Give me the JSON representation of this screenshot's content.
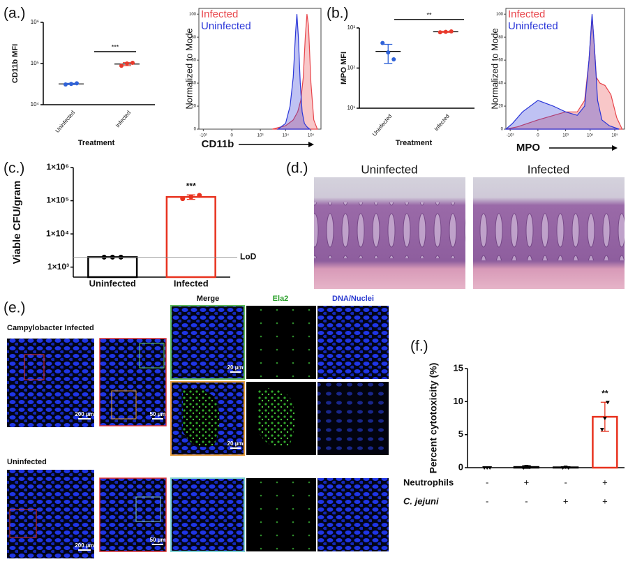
{
  "chart_data": [
    {
      "type": "dot",
      "label": "(a.)",
      "ylabel": "CD11b MFI",
      "xlabel": "Treatment",
      "categories": [
        "Uninfected",
        "Infected"
      ],
      "yscale": "log",
      "ylim": [
        10000,
        1000000
      ],
      "yticks": [
        {
          "value": 10000,
          "label": "10⁴"
        },
        {
          "value": 100000,
          "label": "10⁵"
        },
        {
          "value": 1000000,
          "label": "10⁶"
        }
      ],
      "colors": [
        "#2f62d8",
        "#e8392c"
      ],
      "points": [
        [
          31000,
          32000,
          33000
        ],
        [
          88000,
          100000,
          104000
        ]
      ],
      "mean": [
        32000,
        97000
      ],
      "error": [
        1000,
        8000
      ],
      "annotation": "***"
    },
    {
      "type": "area",
      "ylabel": "Normalized to Mode",
      "xlabel": "CD11b",
      "xscale": "biex",
      "xlim": [
        -1500,
        250000
      ],
      "xticks": [
        {
          "value": -1000,
          "label": "-10³"
        },
        0,
        {
          "value": 1000,
          "label": "10³"
        },
        {
          "value": 10000,
          "label": "10⁴"
        },
        {
          "value": 100000,
          "label": "10⁵"
        }
      ],
      "ylim": [
        0,
        105
      ],
      "yticks": [
        0,
        20,
        40,
        60,
        80,
        100
      ],
      "legend": "top-left",
      "series": [
        {
          "name": "Infected",
          "color": "#e8444a",
          "x": [
            3000,
            10000,
            20000,
            30000,
            40000,
            50000,
            60000,
            70000,
            80000,
            100000,
            130000,
            180000
          ],
          "values": [
            0,
            3,
            8,
            15,
            25,
            45,
            80,
            100,
            90,
            40,
            8,
            0
          ]
        },
        {
          "name": "Uninfected",
          "color": "#2a36d8",
          "x": [
            5000,
            10000,
            15000,
            20000,
            25000,
            28000,
            32000,
            38000,
            45000,
            55000,
            70000,
            90000
          ],
          "values": [
            0,
            5,
            20,
            45,
            85,
            100,
            80,
            40,
            15,
            5,
            2,
            0
          ]
        }
      ]
    },
    {
      "type": "dot",
      "label": "(b.)",
      "ylabel": "MPO MFI",
      "xlabel": "Treatment",
      "categories": [
        "Uninfected",
        "Infected"
      ],
      "yscale": "log",
      "ylim": [
        10,
        1000
      ],
      "yticks": [
        {
          "value": 10,
          "label": "10¹"
        },
        {
          "value": 100,
          "label": "10²"
        },
        {
          "value": 1000,
          "label": "10³"
        }
      ],
      "colors": [
        "#2f62d8",
        "#e8392c"
      ],
      "points": [
        [
          420,
          245,
          165
        ],
        [
          780,
          800,
          820
        ]
      ],
      "mean": [
        260,
        800
      ],
      "error": [
        130,
        20
      ],
      "annotation": "**"
    },
    {
      "type": "area",
      "ylabel": "Normalized to Mode",
      "xlabel": "MPO",
      "xscale": "biex",
      "xlim": [
        -1500,
        250000
      ],
      "xticks": [
        {
          "value": -1000,
          "label": "-10³"
        },
        0,
        {
          "value": 1000,
          "label": "10³"
        },
        {
          "value": 10000,
          "label": "10⁴"
        },
        {
          "value": 100000,
          "label": "10⁵"
        }
      ],
      "ylim": [
        0,
        105
      ],
      "yticks": [
        0,
        20,
        40,
        60,
        80,
        100
      ],
      "legend": "top-left",
      "series": [
        {
          "name": "Infected",
          "color": "#e8444a",
          "x": [
            -1500,
            -500,
            0,
            1000,
            3000,
            6000,
            9000,
            12000,
            14000,
            18000,
            25000,
            40000,
            70000,
            120000,
            200000
          ],
          "values": [
            0,
            2,
            8,
            15,
            15,
            25,
            60,
            98,
            80,
            45,
            40,
            38,
            30,
            10,
            0
          ]
        },
        {
          "name": "Uninfected",
          "color": "#2a36d8",
          "x": [
            -1500,
            -800,
            -300,
            0,
            300,
            1000,
            3000,
            6000,
            9000,
            12000,
            15000,
            20000,
            30000,
            60000,
            150000
          ],
          "values": [
            0,
            5,
            15,
            25,
            20,
            15,
            12,
            20,
            60,
            100,
            70,
            25,
            8,
            3,
            0
          ]
        }
      ]
    },
    {
      "type": "bar",
      "label": "(c.)",
      "ylabel": "Viable CFU/gram",
      "categories": [
        "Uninfected",
        "Infected"
      ],
      "yscale": "log",
      "ylim": [
        500,
        1000000
      ],
      "yticks": [
        {
          "value": 1000,
          "label": "1×10³"
        },
        {
          "value": 10000,
          "label": "1×10⁴"
        },
        {
          "value": 100000,
          "label": "1×10⁵"
        },
        {
          "value": 1000000,
          "label": "1×10⁶"
        }
      ],
      "values": [
        2000,
        130000
      ],
      "error": [
        0,
        20000
      ],
      "points": [
        [
          2000,
          2000,
          2000
        ],
        [
          115000,
          130000,
          145000
        ]
      ],
      "colors": [
        "#000000",
        "#e8321e"
      ],
      "reference": {
        "value": 2000,
        "label": "LoD"
      },
      "annotation": "***"
    },
    {
      "type": "bar",
      "label": "(f.)",
      "ylabel": "Percent cytotoxicity (%)",
      "categories": [
        null,
        null,
        null,
        null
      ],
      "ylim": [
        0,
        15
      ],
      "yticks": [
        0,
        5,
        10,
        15
      ],
      "values": [
        0,
        0.1,
        0.05,
        7.7
      ],
      "error": [
        0,
        0.2,
        0.1,
        2.2
      ],
      "points": [
        [
          0,
          0,
          0
        ],
        [
          0,
          0.2,
          0.1
        ],
        [
          0,
          0.1,
          0
        ],
        [
          5.8,
          7.5,
          9.9
        ]
      ],
      "colors": [
        "#000000",
        "#000000",
        "#000000",
        "#e8321e"
      ],
      "annotation": "**",
      "rows": [
        {
          "label": "Neutrophils",
          "marks": [
            "-",
            "+",
            "-",
            "+"
          ]
        },
        {
          "label": "C. jejuni",
          "marks": [
            "-",
            "-",
            "+",
            "+"
          ]
        }
      ]
    }
  ],
  "panel_d": {
    "label": "(d.)",
    "images": [
      "Uninfected",
      "Infected"
    ]
  },
  "panel_e": {
    "label": "(e.)",
    "columns": [
      "Merge",
      "Ela2",
      "DNA/Nuclei"
    ],
    "rows": [
      {
        "label": "Campylobacter Infected",
        "scale_bars": [
          "200 µm",
          "50 µm",
          "20 µm",
          "20 µm"
        ]
      },
      {
        "label": "Uninfected",
        "scale_bars": [
          "200 µm",
          "50 µm"
        ]
      }
    ]
  }
}
